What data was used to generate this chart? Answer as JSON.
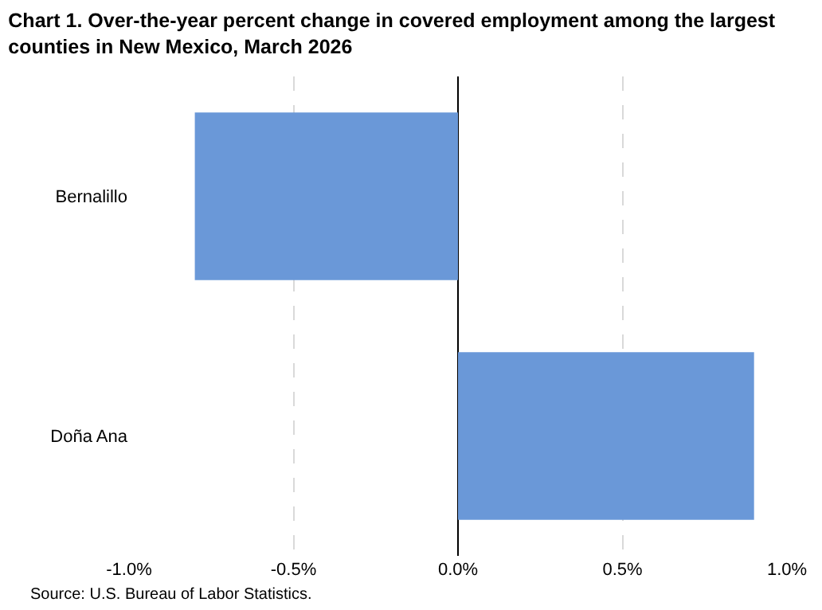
{
  "chart_data": {
    "type": "bar",
    "orientation": "horizontal",
    "title": "Chart 1. Over-the-year percent change in covered employment among the largest counties in New Mexico, March 2026",
    "categories": [
      "Bernalillo",
      "Doña Ana"
    ],
    "values": [
      -0.8,
      0.9
    ],
    "color": "#6a98d8",
    "xlim": [
      -1.0,
      1.0
    ],
    "xticks": [
      {
        "value": -1.0,
        "label": "-1.0%"
      },
      {
        "value": -0.5,
        "label": "-0.5%"
      },
      {
        "value": 0,
        "label": "0.0%"
      },
      {
        "value": 0.5,
        "label": "0.5%"
      },
      {
        "value": 1.0,
        "label": "1.0%"
      }
    ],
    "grid": "x",
    "annotations": [
      "Source: U.S. Bureau of Labor Statistics."
    ]
  }
}
